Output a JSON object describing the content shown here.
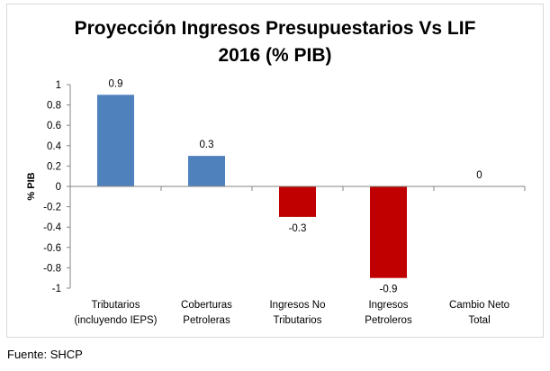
{
  "chart_data": {
    "type": "bar",
    "title": "Proyección Ingresos Presupuestarios Vs LIF",
    "subtitle": "2016 (% PIB)",
    "ylabel": "% PIB",
    "xlabel": "",
    "ylim": [
      -1,
      1
    ],
    "yticks": [
      1,
      0.8,
      0.6,
      0.4,
      0.2,
      0,
      -0.2,
      -0.4,
      -0.6,
      -0.8,
      -1
    ],
    "ytick_labels": [
      "1",
      "0.8",
      "0.6",
      "0.4",
      "0.2",
      "0",
      "-0.2",
      "-0.4",
      "-0.6",
      "-0.8",
      "-1"
    ],
    "categories": [
      [
        "Tributarios",
        "(incluyendo IEPS)"
      ],
      [
        "Coberturas",
        "Petroleras"
      ],
      [
        "Ingresos No",
        "Tributarios"
      ],
      [
        "Ingresos",
        "Petroleros"
      ],
      [
        "Cambio Neto",
        "Total"
      ]
    ],
    "values": [
      0.9,
      0.3,
      -0.3,
      -0.9,
      0
    ],
    "data_labels": [
      "0.9",
      "0.3",
      "-0.3",
      "-0.9",
      "0"
    ],
    "colors": {
      "positive": "#4f81bd",
      "negative": "#c00000"
    },
    "grid": false,
    "legend": "none"
  },
  "source": "Fuente: SHCP"
}
